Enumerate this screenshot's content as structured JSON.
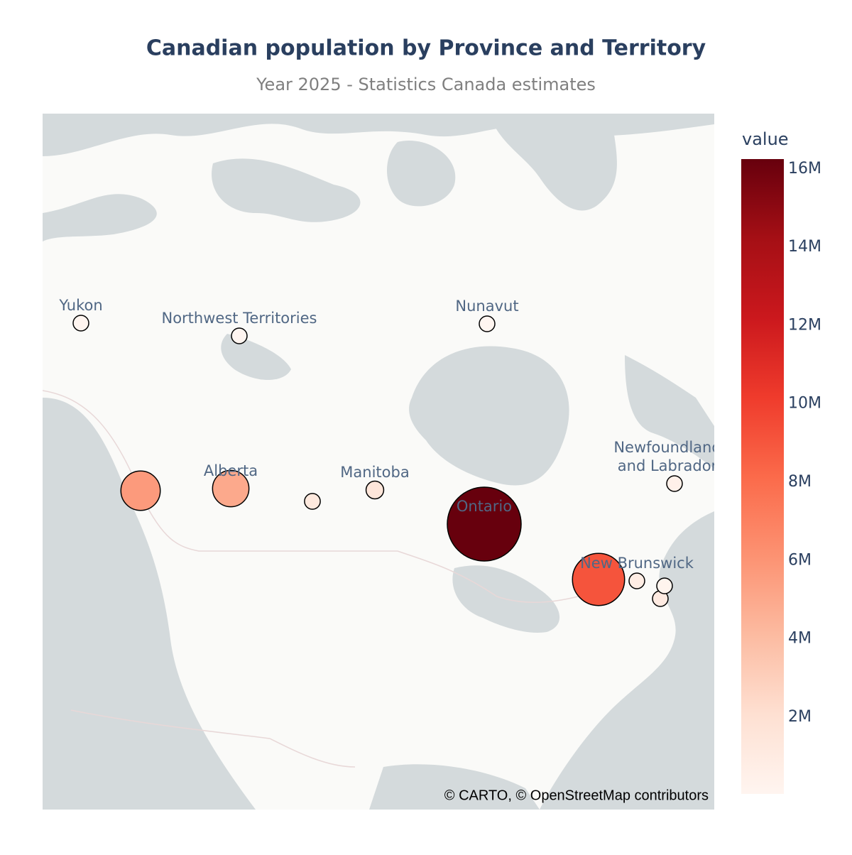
{
  "chart_data": {
    "type": "bubble_map",
    "title": "Canadian population by Province and Territory",
    "subtitle": "Year 2025 - Statistics Canada estimates",
    "points": [
      {
        "name": "Yukon",
        "value": 46000
      },
      {
        "name": "Northwest Territories",
        "value": 45000
      },
      {
        "name": "Nunavut",
        "value": 41000
      },
      {
        "name": null,
        "value": 5700000
      },
      {
        "name": "Alberta",
        "value": 5000000
      },
      {
        "name": null,
        "value": 1240000
      },
      {
        "name": "Manitoba",
        "value": 1500000
      },
      {
        "name": "Ontario",
        "value": 16250000
      },
      {
        "name": null,
        "value": 9100000
      },
      {
        "name": "New Brunswick",
        "value": 860000
      },
      {
        "name": null,
        "value": 180000
      },
      {
        "name": null,
        "value": 1080000
      },
      {
        "name": "Newfoundland\nand Labrador",
        "value": 540000
      }
    ],
    "colorscale": [
      "#fff5f0",
      "#fee0d2",
      "#fcbba1",
      "#fc9272",
      "#fb6a4a",
      "#ef3b2c",
      "#cb181d",
      "#a50f15",
      "#67000d"
    ],
    "colorbar_title": "value",
    "colorbar_ticks": [
      {
        "value": 2000000,
        "label": "2M"
      },
      {
        "value": 4000000,
        "label": "4M"
      },
      {
        "value": 6000000,
        "label": "6M"
      },
      {
        "value": 8000000,
        "label": "8M"
      },
      {
        "value": 10000000,
        "label": "10M"
      },
      {
        "value": 12000000,
        "label": "12M"
      },
      {
        "value": 14000000,
        "label": "14M"
      },
      {
        "value": 16000000,
        "label": "16M"
      }
    ],
    "attribution": "© CARTO, © OpenStreetMap contributors"
  }
}
